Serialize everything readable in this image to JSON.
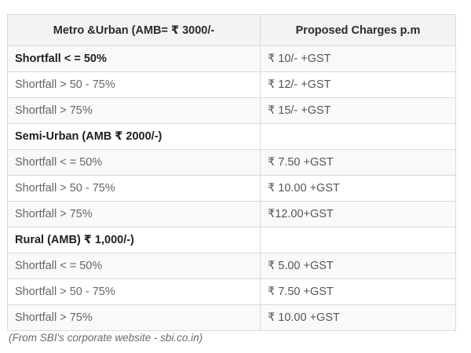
{
  "table": {
    "headers": [
      "Metro &Urban (AMB= ₹ 3000/-",
      "Proposed Charges p.m"
    ],
    "rows": [
      {
        "label": "Shortfall < = 50%",
        "charge": "₹ 10/- +GST",
        "kind": "group"
      },
      {
        "label": "Shortfall > 50 - 75%",
        "charge": "₹ 12/- +GST",
        "kind": "sub"
      },
      {
        "label": "Shortfall > 75%",
        "charge": "₹ 15/- +GST",
        "kind": "sub"
      },
      {
        "label": "Semi-Urban (AMB ₹ 2000/-)",
        "charge": "",
        "kind": "group"
      },
      {
        "label": "Shortfall < = 50%",
        "charge": "₹ 7.50 +GST",
        "kind": "sub"
      },
      {
        "label": "Shortfall > 50 - 75%",
        "charge": "₹ 10.00 +GST",
        "kind": "sub"
      },
      {
        "label": "Shortfall > 75%",
        "charge": "₹12.00+GST",
        "kind": "sub"
      },
      {
        "label": "Rural (AMB) ₹ 1,000/-)",
        "charge": "",
        "kind": "group"
      },
      {
        "label": "Shortfall < = 50%",
        "charge": "₹ 5.00 +GST",
        "kind": "sub"
      },
      {
        "label": "Shortfall > 50 - 75%",
        "charge": "₹ 7.50 +GST",
        "kind": "sub"
      },
      {
        "label": "Shortfall > 75%",
        "charge": "₹ 10.00 +GST",
        "kind": "sub"
      }
    ]
  },
  "caption": "(From SBI's corporate website - sbi.co.in)"
}
